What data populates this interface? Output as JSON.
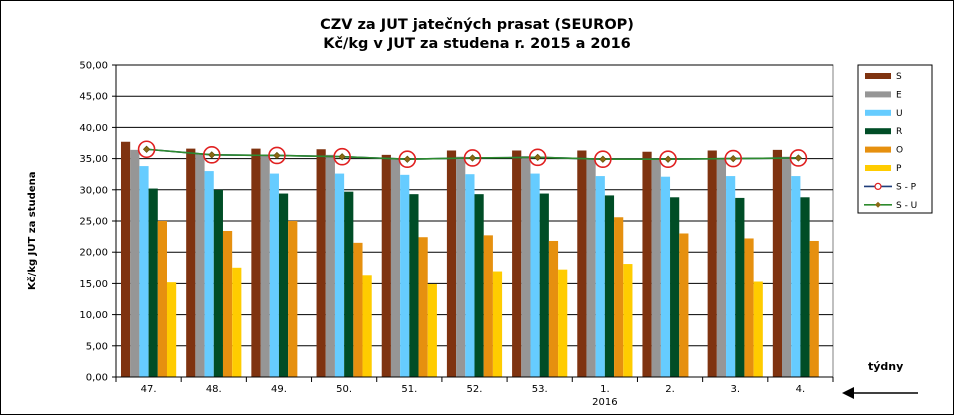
{
  "chart_data": {
    "type": "bar",
    "title": "CZV za JUT jatečných prasat (SEUROP)",
    "subtitle": "Kč/kg v JUT za studena r. 2015 a 2016",
    "ylabel": "Kč/kg  JUT za studena",
    "xlabel": "týdny",
    "ylim": [
      0,
      50
    ],
    "yticks": [
      "0,00",
      "5,00",
      "10,00",
      "15,00",
      "20,00",
      "25,00",
      "30,00",
      "35,00",
      "40,00",
      "45,00",
      "50,00"
    ],
    "categories": [
      "47.",
      "48.",
      "49.",
      "50.",
      "51.",
      "52.",
      "53.",
      "1.",
      "2.",
      "3.",
      "4."
    ],
    "category_sublabels": [
      "",
      "",
      "",
      "",
      "",
      "",
      "",
      "2016",
      "",
      "",
      ""
    ],
    "grid": true,
    "legend_position": "right",
    "series": [
      {
        "name": "S",
        "kind": "bar",
        "color": "#7f3310",
        "values": [
          37.7,
          36.6,
          36.6,
          36.5,
          35.6,
          36.3,
          36.3,
          36.3,
          36.1,
          36.3,
          36.4
        ]
      },
      {
        "name": "E",
        "kind": "bar",
        "color": "#969696",
        "values": [
          36.4,
          35.8,
          35.6,
          35.6,
          35.1,
          35.3,
          35.4,
          35.1,
          35.0,
          35.0,
          35.3
        ]
      },
      {
        "name": "U",
        "kind": "bar",
        "color": "#66ccff",
        "values": [
          33.8,
          33.0,
          32.6,
          32.6,
          32.4,
          32.5,
          32.6,
          32.2,
          32.1,
          32.2,
          32.2
        ]
      },
      {
        "name": "R",
        "kind": "bar",
        "color": "#004d26",
        "values": [
          30.2,
          30.0,
          29.4,
          29.7,
          29.3,
          29.3,
          29.4,
          29.1,
          28.8,
          28.7,
          28.8
        ]
      },
      {
        "name": "O",
        "kind": "bar",
        "color": "#e6900f",
        "values": [
          25.0,
          23.4,
          25.0,
          21.5,
          22.4,
          22.7,
          21.8,
          25.6,
          23.0,
          22.2,
          21.8
        ]
      },
      {
        "name": "P",
        "kind": "bar",
        "color": "#ffcc00",
        "values": [
          15.2,
          17.5,
          null,
          16.3,
          14.9,
          16.9,
          17.2,
          18.1,
          null,
          15.3,
          null
        ]
      },
      {
        "name": "S - P",
        "kind": "line",
        "color": "#1f3d7a",
        "marker": "circle",
        "marker_color": "#e02020",
        "values": [
          36.5,
          35.6,
          35.5,
          35.3,
          34.9,
          35.1,
          35.2,
          34.9,
          34.9,
          35.0,
          35.1
        ]
      },
      {
        "name": "S - U",
        "kind": "line",
        "color": "#2e8b2e",
        "marker": "diamond",
        "marker_color": "#8b6914",
        "values": [
          36.5,
          35.6,
          35.5,
          35.3,
          34.9,
          35.1,
          35.2,
          34.9,
          34.9,
          35.0,
          35.1
        ]
      }
    ]
  }
}
